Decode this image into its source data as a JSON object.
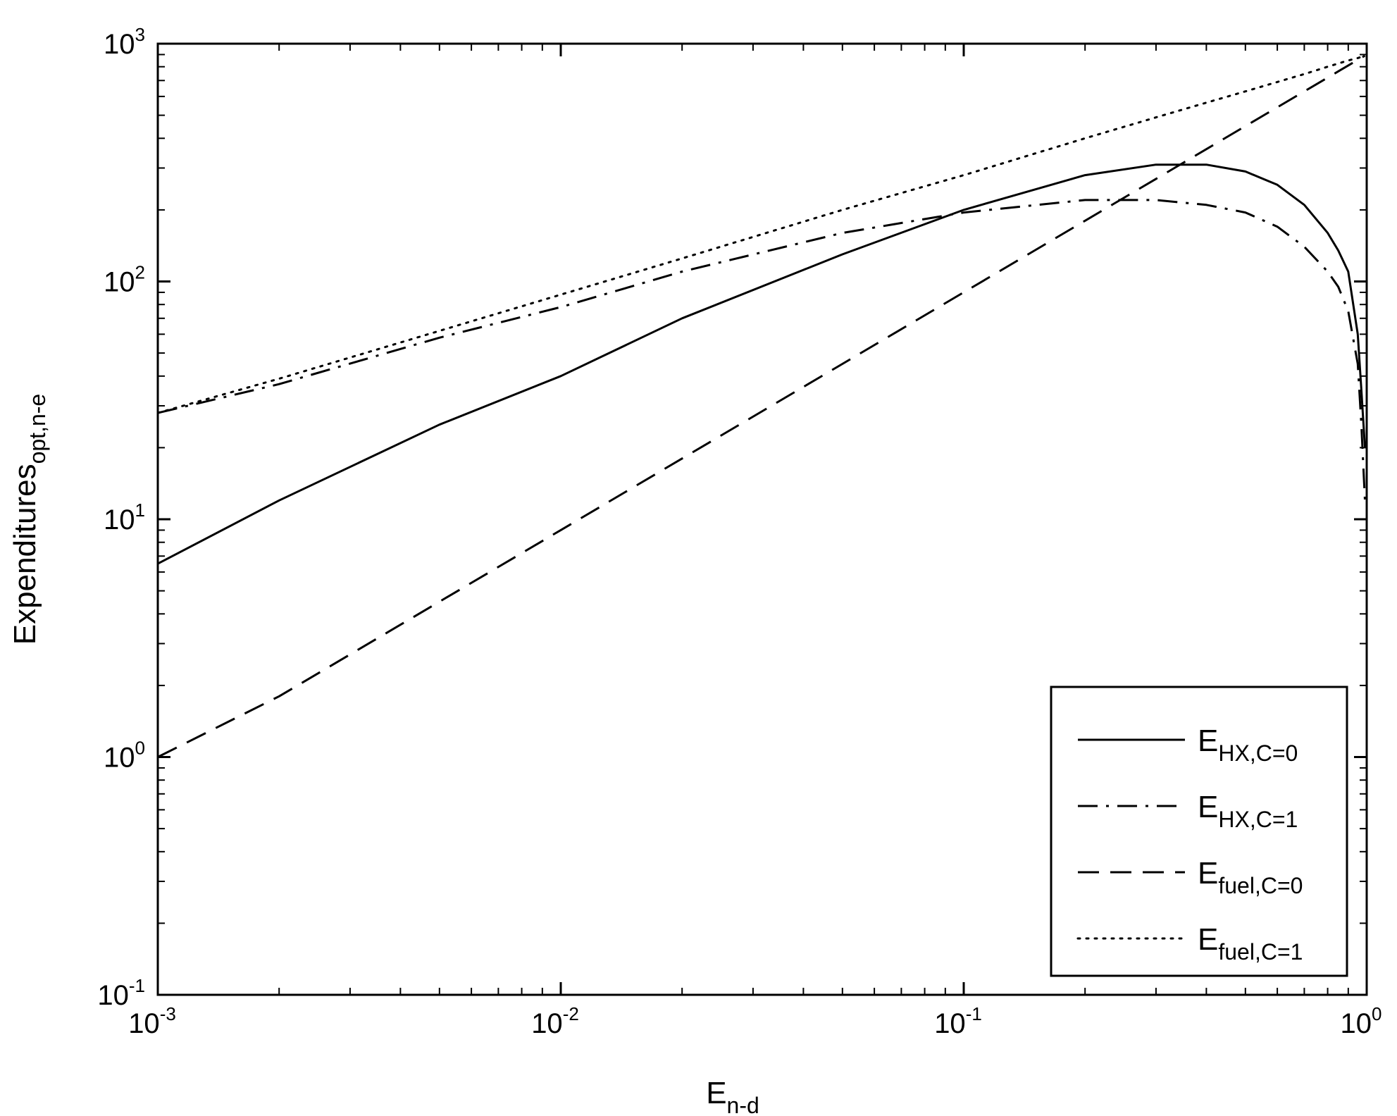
{
  "chart_data": {
    "type": "line",
    "x_scale": "log",
    "y_scale": "log",
    "xlim": [
      0.001,
      1
    ],
    "ylim": [
      0.1,
      1000
    ],
    "grid": false,
    "legend_position": "bottom-right",
    "xlabel": {
      "base": "E",
      "sub": "n-d"
    },
    "ylabel": {
      "base": "Expenditures",
      "sub": "opt,n-e"
    },
    "x_ticks": [
      {
        "base": "10",
        "exp": "-3"
      },
      {
        "base": "10",
        "exp": "-2"
      },
      {
        "base": "10",
        "exp": "-1"
      },
      {
        "base": "10",
        "exp": "0"
      }
    ],
    "y_ticks": [
      {
        "base": "10",
        "exp": "-1"
      },
      {
        "base": "10",
        "exp": "0"
      },
      {
        "base": "10",
        "exp": "1"
      },
      {
        "base": "10",
        "exp": "2"
      },
      {
        "base": "10",
        "exp": "3"
      }
    ],
    "x": [
      0.001,
      0.002,
      0.005,
      0.01,
      0.02,
      0.05,
      0.1,
      0.2,
      0.3,
      0.4,
      0.5,
      0.6,
      0.7,
      0.8,
      0.85,
      0.9,
      0.95,
      0.97,
      0.99
    ],
    "series": [
      {
        "name": {
          "base": "E",
          "sub": "HX,C=0"
        },
        "style": "solid",
        "values": [
          6.5,
          12.0,
          25.0,
          40.0,
          70.0,
          130.0,
          200.0,
          280.0,
          310.0,
          310.0,
          290.0,
          255.0,
          210.0,
          160.0,
          135.0,
          110.0,
          60.0,
          35.0,
          20.0
        ]
      },
      {
        "name": {
          "base": "E",
          "sub": "HX,C=1"
        },
        "style": "dashdot",
        "values": [
          28.0,
          37.0,
          58.0,
          78.0,
          110.0,
          160.0,
          195.0,
          220.0,
          220.0,
          210.0,
          195.0,
          170.0,
          140.0,
          110.0,
          95.0,
          75.0,
          45.0,
          25.0,
          12.0
        ]
      },
      {
        "name": {
          "base": "E",
          "sub": "fuel,C=0"
        },
        "style": "dashed",
        "values": [
          1.0,
          1.8,
          4.5,
          9.0,
          18.0,
          45.0,
          90.0,
          180.0,
          270.0,
          360.0,
          450.0,
          540.0,
          630.0,
          720.0,
          765.0,
          810.0,
          855.0,
          873.0,
          890.0
        ]
      },
      {
        "name": {
          "base": "E",
          "sub": "fuel,C=1"
        },
        "style": "dotted",
        "values": [
          28.0,
          39.0,
          62.0,
          88.0,
          125.0,
          200.0,
          280.0,
          400.0,
          490.0,
          565.0,
          630.0,
          690.0,
          745.0,
          800.0,
          825.0,
          850.0,
          870.0,
          880.0,
          890.0
        ]
      }
    ]
  }
}
